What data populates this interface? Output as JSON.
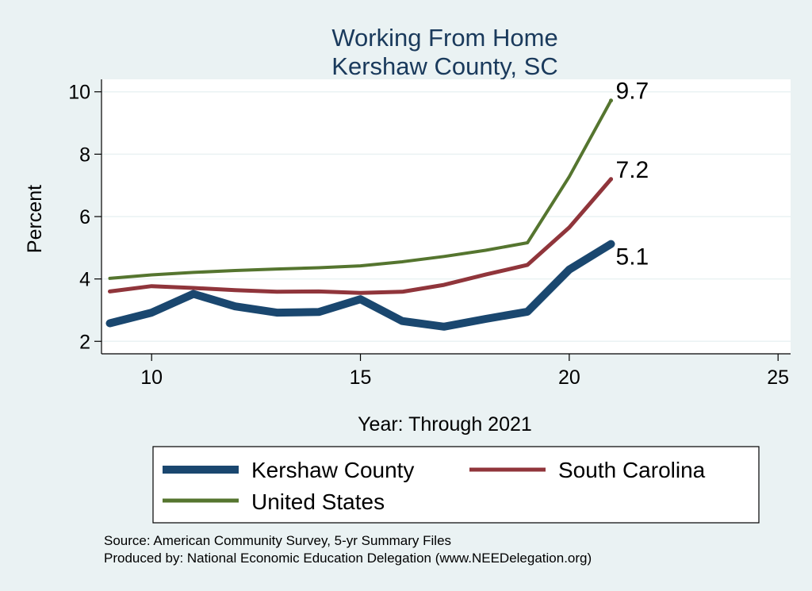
{
  "chart_data": {
    "type": "line",
    "title": [
      "Working From Home",
      "Kershaw County, SC"
    ],
    "xlabel": "Year: Through 2021",
    "ylabel": "Percent",
    "xlim": [
      8.8,
      25.3
    ],
    "ylim": [
      1.6,
      10.4
    ],
    "xticks": [
      10,
      15,
      20,
      25
    ],
    "yticks": [
      2,
      4,
      6,
      8,
      10
    ],
    "grid": true,
    "x": [
      9,
      10,
      11,
      12,
      13,
      14,
      15,
      16,
      17,
      18,
      19,
      20,
      21
    ],
    "series": [
      {
        "name": "Kershaw County",
        "color": "#1a476f",
        "values": [
          2.58,
          2.92,
          3.52,
          3.12,
          2.92,
          2.94,
          3.35,
          2.65,
          2.47,
          2.72,
          2.95,
          4.3,
          5.12
        ],
        "end_label": "5.1"
      },
      {
        "name": "South Carolina",
        "color": "#90353b",
        "values": [
          3.6,
          3.77,
          3.71,
          3.64,
          3.59,
          3.6,
          3.55,
          3.59,
          3.81,
          4.14,
          4.45,
          5.65,
          7.2
        ],
        "end_label": "7.2"
      },
      {
        "name": "United States",
        "color": "#55752f",
        "values": [
          4.02,
          4.13,
          4.21,
          4.27,
          4.32,
          4.36,
          4.42,
          4.55,
          4.72,
          4.92,
          5.16,
          7.28,
          9.72
        ],
        "end_label": "9.7"
      }
    ],
    "legend": [
      "Kershaw County",
      "South Carolina",
      "United States"
    ],
    "notes": [
      "Source: American Community Survey, 5-yr Summary Files",
      "Produced by: National Economic Education Delegation (www.NEEDelegation.org)"
    ]
  }
}
